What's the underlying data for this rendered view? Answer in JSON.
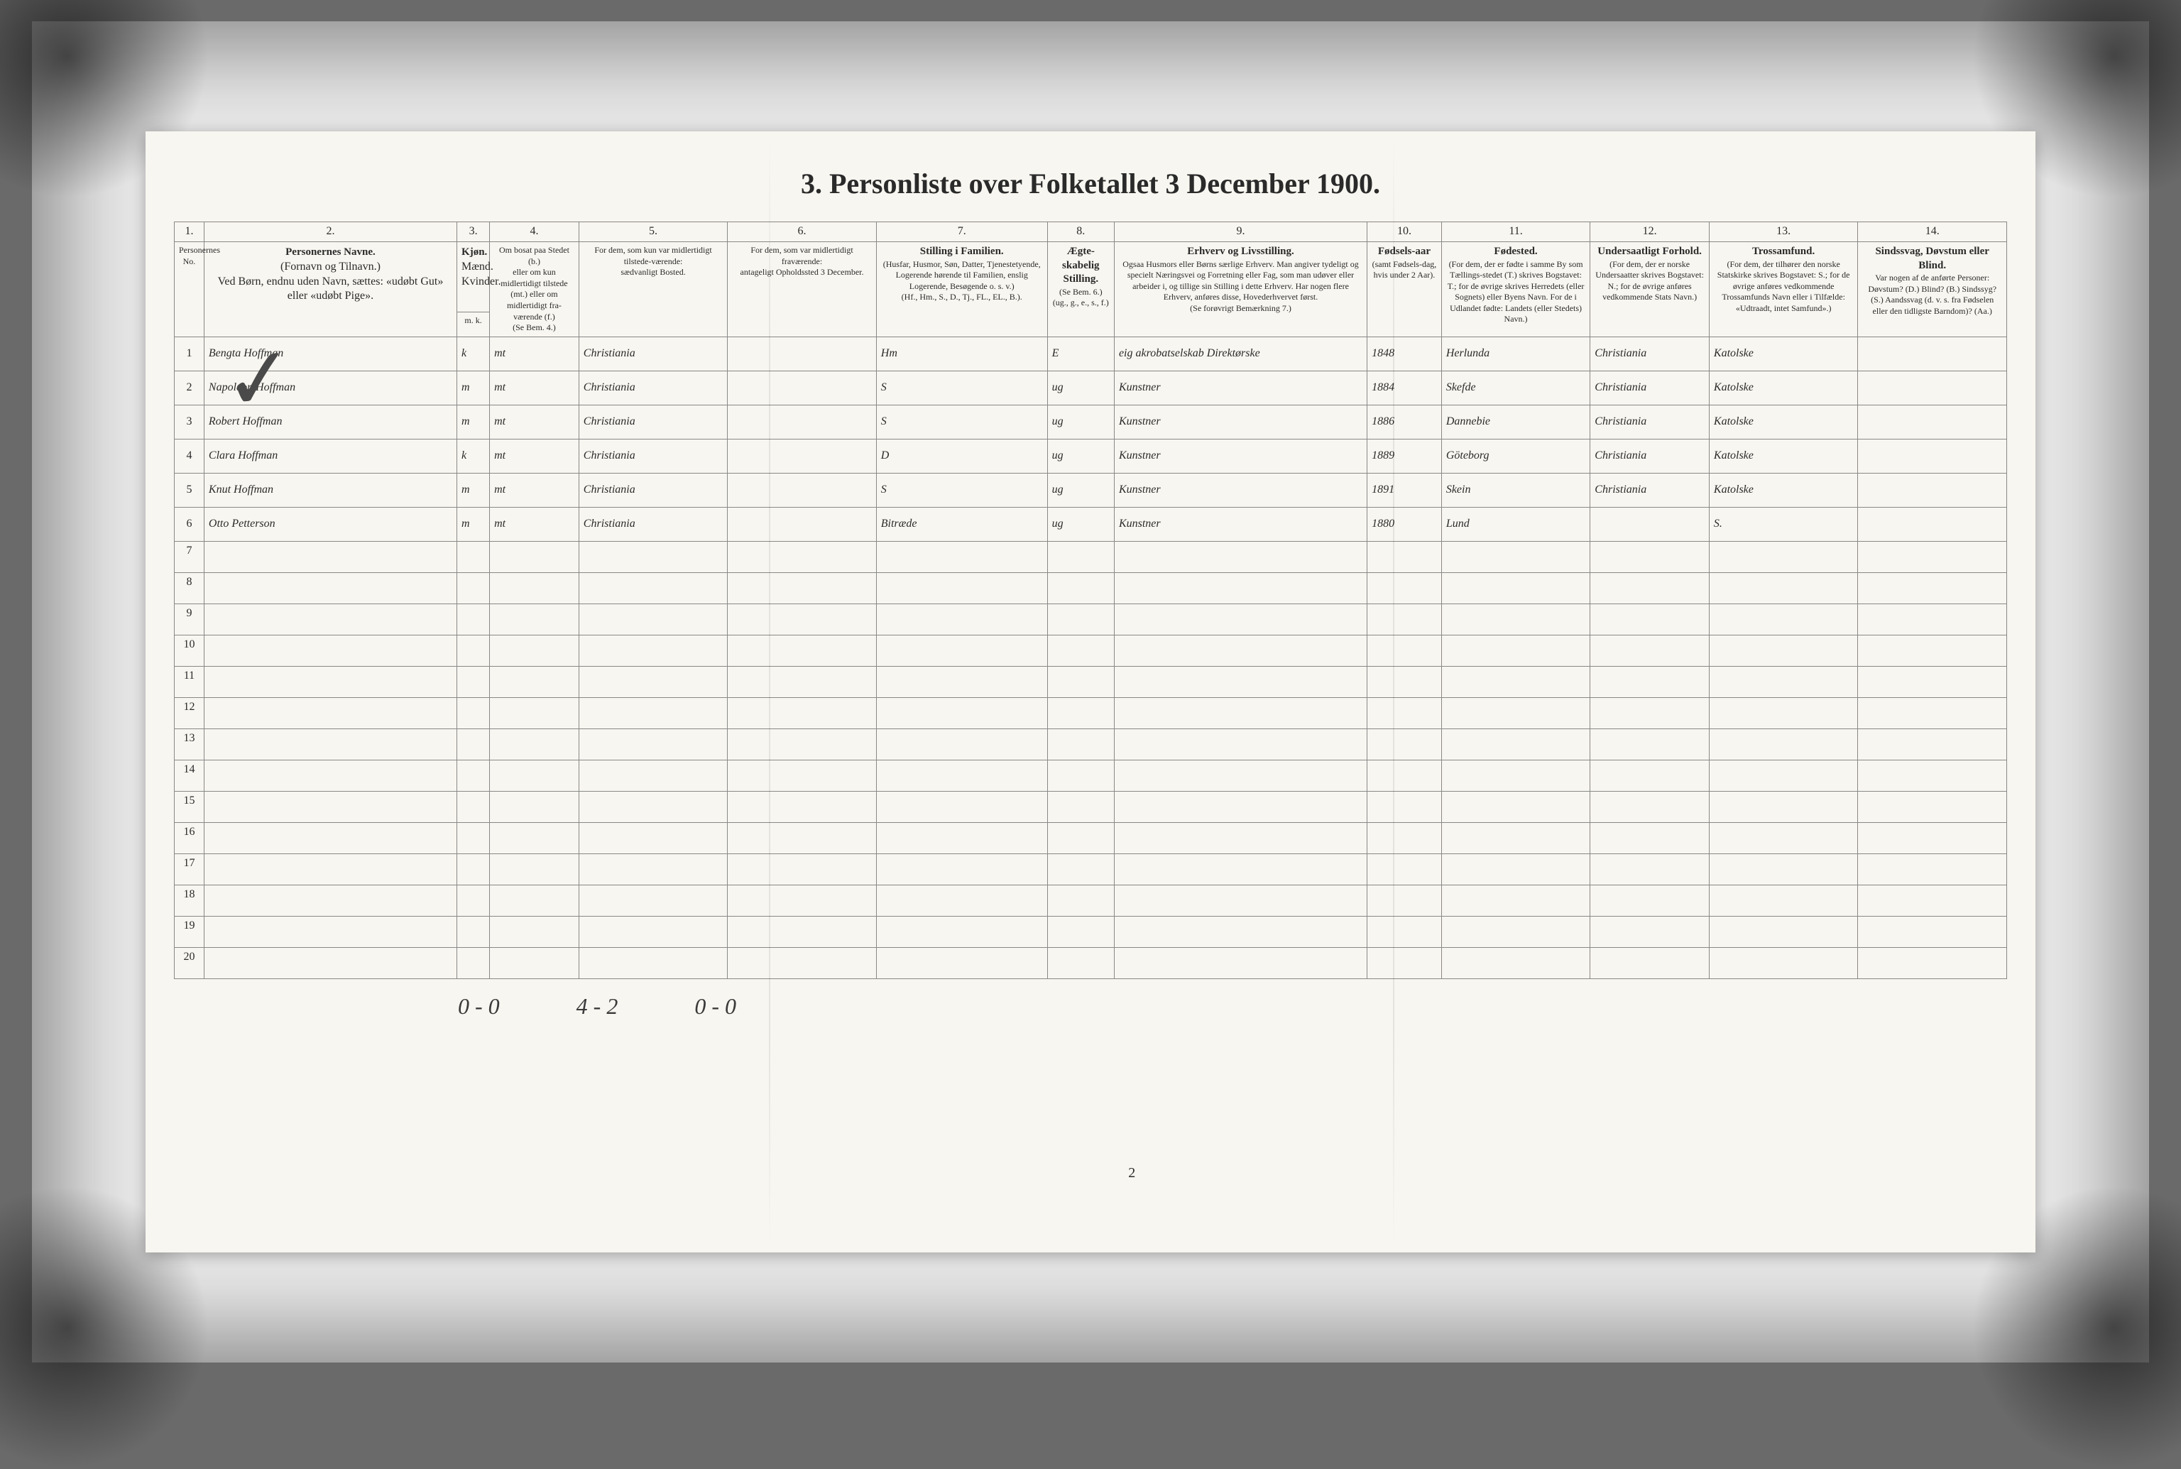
{
  "document": {
    "title": "3. Personliste over Folketallet 3 December 1900.",
    "page_indicator": "2"
  },
  "columns": {
    "numbers": [
      "1.",
      "2.",
      "3.",
      "4.",
      "5.",
      "6.",
      "7.",
      "8.",
      "9.",
      "10.",
      "11.",
      "12.",
      "13.",
      "14."
    ],
    "widths": [
      40,
      340,
      44,
      120,
      200,
      200,
      230,
      90,
      340,
      100,
      200,
      160,
      200,
      200
    ],
    "headers": {
      "c1": "Personernes No.",
      "c2_title": "Personernes Navne.",
      "c2_sub": "(Fornavn og Tilnavn.)\nVed Børn, endnu uden Navn, sættes: «udøbt Gut» eller «udøbt Pige».",
      "c3_title": "Kjøn.",
      "c3_sub": "Mænd. Kvinder.",
      "c3_mk": "m. k.",
      "c4_title": "Om bosat paa Stedet (b.)",
      "c4_sub": "eller om kun midlertidigt tilstede (mt.) eller om midlertidigt fra-værende (f.)\n(Se Bem. 4.)",
      "c5_title": "For dem, som kun var midlertidigt tilstede-værende:",
      "c5_sub": "sædvanligt Bosted.",
      "c6_title": "For dem, som var midlertidigt fraværende:",
      "c6_sub": "antageligt Opholdssted 3 December.",
      "c7_title": "Stilling i Familien.",
      "c7_sub": "(Husfar, Husmor, Søn, Datter, Tjenestetyende, Logerende hørende til Familien, enslig Logerende, Besøgende o. s. v.)\n(Hf., Hm., S., D., Tj., FL., EL., B.).",
      "c8_title": "Ægte-skabelig Stilling.",
      "c8_sub": "(Se Bem. 6.) (ug., g., e., s., f.)",
      "c9_title": "Erhverv og Livsstilling.",
      "c9_sub": "Ogsaa Husmors eller Børns særlige Erhverv. Man angiver tydeligt og specielt Næringsvei og Forretning eller Fag, som man udøver eller arbeider i, og tillige sin Stilling i dette Erhverv. Har nogen flere Erhverv, anføres disse, Hovederhvervet først.\n(Se forøvrigt Bemærkning 7.)",
      "c10_title": "Fødsels-aar",
      "c10_sub": "(samt Fødsels-dag, hvis under 2 Aar).",
      "c11_title": "Fødested.",
      "c11_sub": "(For dem, der er fødte i samme By som Tællings-stedet (T.) skrives Bogstavet: T.; for de øvrige skrives Herredets (eller Sognets) eller Byens Navn. For de i Udlandet fødte: Landets (eller Stedets) Navn.)",
      "c12_title": "Undersaatligt Forhold.",
      "c12_sub": "(For dem, der er norske Undersaatter skrives Bogstavet: N.; for de øvrige anføres vedkommende Stats Navn.)",
      "c13_title": "Trossamfund.",
      "c13_sub": "(For dem, der tilhører den norske Statskirke skrives Bogstavet: S.; for de øvrige anføres vedkommende Trossamfunds Navn eller i Tilfælde: «Udtraadt, intet Samfund».)",
      "c14_title": "Sindssvag, Døvstum eller Blind.",
      "c14_sub": "Var nogen af de anførte Personer: Døvstum? (D.) Blind? (B.) Sindssyg? (S.) Aandssvag (d. v. s. fra Fødselen eller den tidligste Barndom)? (Aa.)"
    }
  },
  "rows": [
    {
      "num": "1",
      "name": "Bengta Hoffman",
      "sex": "k",
      "stay": "mt",
      "residence": "Christiania",
      "absent": "",
      "position": "Hm",
      "marital": "E",
      "occupation": "eig akrobatselskab Direktørske",
      "birth_year": "1848",
      "birthplace": "Herlunda",
      "citizenship": "Christiania",
      "faith": "Katolske",
      "disability": ""
    },
    {
      "num": "2",
      "name": "Napoleon Hoffman",
      "sex": "m",
      "stay": "mt",
      "residence": "Christiania",
      "absent": "",
      "position": "S",
      "marital": "ug",
      "occupation": "Kunstner",
      "birth_year": "1884",
      "birthplace": "Skefde",
      "citizenship": "Christiania",
      "faith": "Katolske",
      "disability": ""
    },
    {
      "num": "3",
      "name": "Robert Hoffman",
      "sex": "m",
      "stay": "mt",
      "residence": "Christiania",
      "absent": "",
      "position": "S",
      "marital": "ug",
      "occupation": "Kunstner",
      "birth_year": "1886",
      "birthplace": "Dannebie",
      "citizenship": "Christiania",
      "faith": "Katolske",
      "disability": ""
    },
    {
      "num": "4",
      "name": "Clara Hoffman",
      "sex": "k",
      "stay": "mt",
      "residence": "Christiania",
      "absent": "",
      "position": "D",
      "marital": "ug",
      "occupation": "Kunstner",
      "birth_year": "1889",
      "birthplace": "Göteborg",
      "citizenship": "Christiania",
      "faith": "Katolske",
      "disability": ""
    },
    {
      "num": "5",
      "name": "Knut Hoffman",
      "sex": "m",
      "stay": "mt",
      "residence": "Christiania",
      "absent": "",
      "position": "S",
      "marital": "ug",
      "occupation": "Kunstner",
      "birth_year": "1891",
      "birthplace": "Skein",
      "citizenship": "Christiania",
      "faith": "Katolske",
      "disability": ""
    },
    {
      "num": "6",
      "name": "Otto Petterson",
      "sex": "m",
      "stay": "mt",
      "residence": "Christiania",
      "absent": "",
      "position": "Bitræde",
      "marital": "ug",
      "occupation": "Kunstner",
      "birth_year": "1880",
      "birthplace": "Lund",
      "citizenship": "",
      "faith": "S.",
      "disability": ""
    }
  ],
  "empty_rows": [
    "7",
    "8",
    "9",
    "10",
    "11",
    "12",
    "13",
    "14",
    "15",
    "16",
    "17",
    "18",
    "19",
    "20"
  ],
  "bottom_annotations": {
    "a1": "0 - 0",
    "a2": "4 - 2",
    "a3": "0 - 0"
  },
  "styling": {
    "background_color": "#6a6a6a",
    "paper_color": "#f8f6f0",
    "border_color": "#888888",
    "text_color": "#2a2a2a",
    "handwriting_color": "#3a3a3a",
    "title_fontsize": 40,
    "header_fontsize": 14,
    "handwriting_fontsize": 26
  }
}
